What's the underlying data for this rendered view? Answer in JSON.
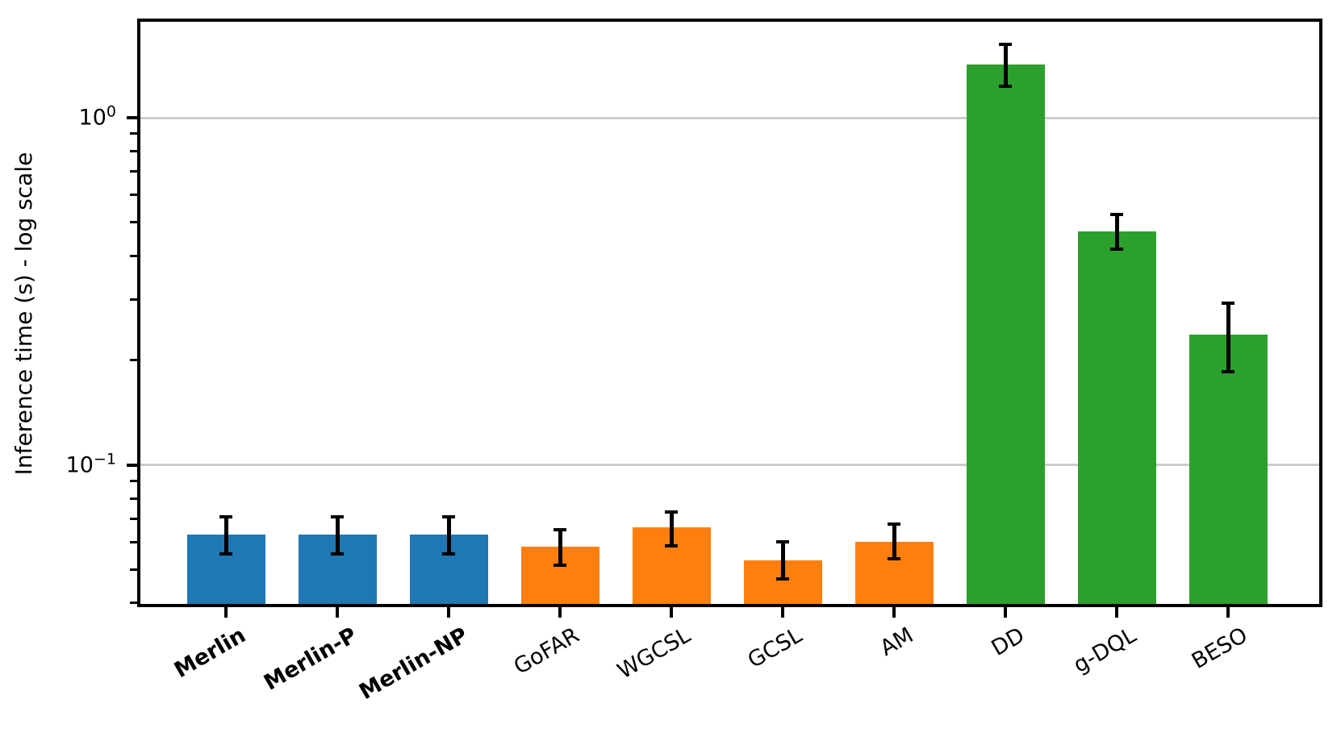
{
  "chart_data": {
    "type": "bar",
    "title": "",
    "xlabel": "",
    "ylabel": "Inference time (s) - log scale",
    "yscale": "log",
    "ylim": [
      0.039,
      1.93
    ],
    "grid": "horizontal major gridlines only",
    "legend": "none",
    "bar_width_fraction": 0.7,
    "tick_label_rotation_deg": 30,
    "categories": [
      "Merlin",
      "Merlin-P",
      "Merlin-NP",
      "GoFAR",
      "WGCSL",
      "GCSL",
      "AM",
      "DD",
      "g-DQL",
      "BESO"
    ],
    "bold_categories": [
      "Merlin",
      "Merlin-P",
      "Merlin-NP"
    ],
    "series": [
      {
        "name": "Inference time (s)",
        "values": [
          0.063,
          0.063,
          0.063,
          0.058,
          0.066,
          0.053,
          0.06,
          1.42,
          0.47,
          0.237
        ],
        "error_high": [
          0.071,
          0.071,
          0.071,
          0.065,
          0.073,
          0.06,
          0.0675,
          1.63,
          0.526,
          0.292
        ],
        "error_low": [
          0.0555,
          0.0555,
          0.0555,
          0.0515,
          0.0585,
          0.047,
          0.0535,
          1.23,
          0.418,
          0.185
        ]
      }
    ],
    "bar_colors": [
      "#1f77b4",
      "#1f77b4",
      "#1f77b4",
      "#ff7f0e",
      "#ff7f0e",
      "#ff7f0e",
      "#ff7f0e",
      "#2ca02c",
      "#2ca02c",
      "#2ca02c"
    ],
    "color_groups": {
      "blue": "#1f77b4",
      "orange": "#ff7f0e",
      "green": "#2ca02c"
    },
    "yticks": [
      {
        "base": "10",
        "exp": "0",
        "value": 1.0
      },
      {
        "base": "10",
        "exp": "−1",
        "value": 0.1
      }
    ],
    "y_minor_ticks": [
      0.04,
      0.05,
      0.06,
      0.07,
      0.08,
      0.09,
      0.2,
      0.3,
      0.4,
      0.5,
      0.6,
      0.7,
      0.8,
      0.9
    ],
    "style_colors": {
      "grid": "#cccccc",
      "axis": "#000000",
      "error_bar": "#000000",
      "background": "#ffffff"
    }
  }
}
